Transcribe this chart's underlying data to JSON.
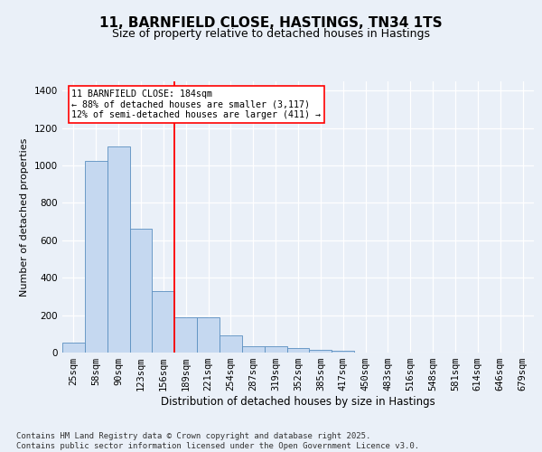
{
  "title": "11, BARNFIELD CLOSE, HASTINGS, TN34 1TS",
  "subtitle": "Size of property relative to detached houses in Hastings",
  "xlabel": "Distribution of detached houses by size in Hastings",
  "ylabel": "Number of detached properties",
  "categories": [
    "25sqm",
    "58sqm",
    "90sqm",
    "123sqm",
    "156sqm",
    "189sqm",
    "221sqm",
    "254sqm",
    "287sqm",
    "319sqm",
    "352sqm",
    "385sqm",
    "417sqm",
    "450sqm",
    "483sqm",
    "516sqm",
    "548sqm",
    "581sqm",
    "614sqm",
    "646sqm",
    "679sqm"
  ],
  "values": [
    55,
    1025,
    1100,
    660,
    330,
    190,
    190,
    90,
    35,
    35,
    25,
    15,
    10,
    0,
    0,
    0,
    0,
    0,
    0,
    0,
    0
  ],
  "bar_color": "#c5d8f0",
  "bar_edge_color": "#5a8fc0",
  "vline_index": 4.5,
  "vline_color": "red",
  "annotation_line1": "11 BARNFIELD CLOSE: 184sqm",
  "annotation_line2": "← 88% of detached houses are smaller (3,117)",
  "annotation_line3": "12% of semi-detached houses are larger (411) →",
  "ylim": [
    0,
    1450
  ],
  "yticks": [
    0,
    200,
    400,
    600,
    800,
    1000,
    1200,
    1400
  ],
  "background_color": "#eaf0f8",
  "plot_background": "#eaf0f8",
  "footer_text": "Contains HM Land Registry data © Crown copyright and database right 2025.\nContains public sector information licensed under the Open Government Licence v3.0.",
  "title_fontsize": 11,
  "subtitle_fontsize": 9,
  "xlabel_fontsize": 8.5,
  "ylabel_fontsize": 8,
  "tick_fontsize": 7.5,
  "footer_fontsize": 6.5
}
